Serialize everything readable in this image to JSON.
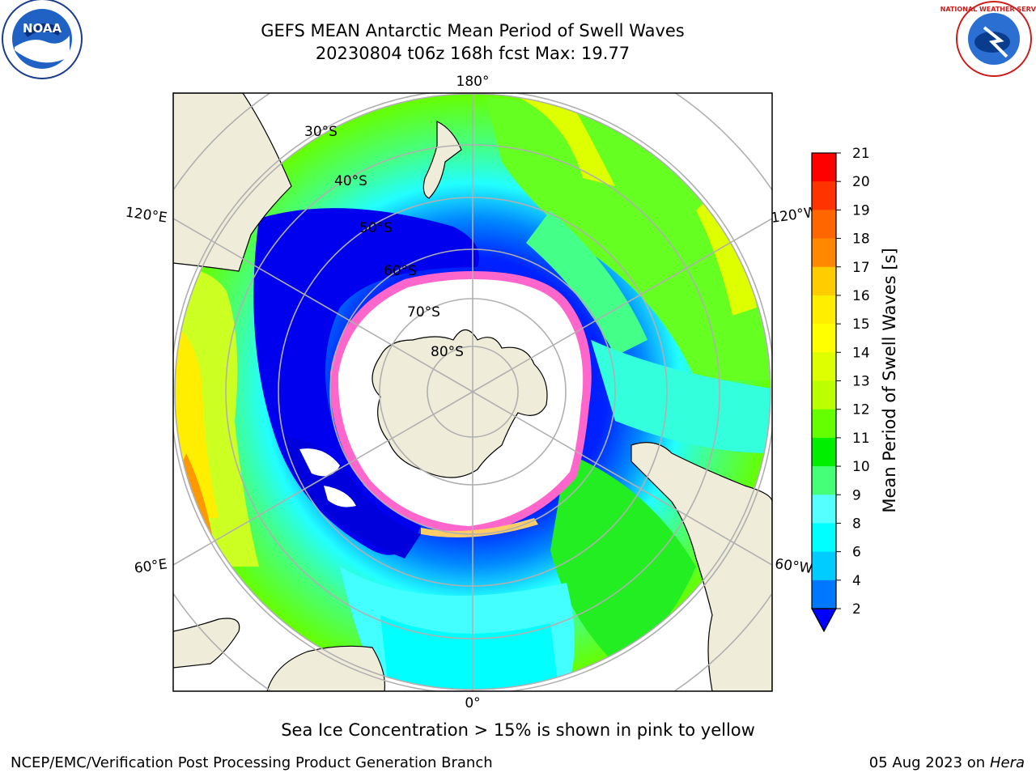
{
  "title": {
    "line1": "GEFS MEAN Antarctic Mean Period of Swell Waves",
    "line2": "20230804 t06z 168h fcst   Max: 19.77"
  },
  "caption": "Sea Ice Concentration > 15% is shown in pink to yellow",
  "footer": {
    "left": "NCEP/EMC/Verification Post Processing Product Generation Branch",
    "date": "05 Aug 2023 on",
    "machine": "Hera"
  },
  "logos": {
    "noara_icon": "noaa-logo",
    "noaa_text": "NOAA",
    "nws_icon": "nws-logo",
    "nws_text": "NATIONAL WEATHER SERVICE"
  },
  "map": {
    "projection": "south-polar-stereographic",
    "longitude_labels": {
      "top": "180°",
      "bottom": "0°",
      "upper_left": "120°E",
      "upper_right": "120°W",
      "lower_left": "60°E",
      "lower_right": "60°W"
    },
    "latitude_labels": [
      "30°S",
      "40°S",
      "50°S",
      "60°S",
      "70°S",
      "80°S"
    ],
    "colors": {
      "land": "#efedd9",
      "ice": "#ffffff",
      "ice_edge": "#ff66cc",
      "grid": "#b0b0b0"
    }
  },
  "colorbar": {
    "label": "Mean Period of Swell Waves [s]",
    "ticks": [
      "21",
      "20",
      "19",
      "18",
      "17",
      "16",
      "15",
      "14",
      "13",
      "12",
      "11",
      "10",
      "9",
      "8",
      "6",
      "4",
      "2"
    ],
    "colors": [
      "#ff0000",
      "#ff3300",
      "#ff6600",
      "#ff8800",
      "#ffaa00",
      "#ffcc00",
      "#ffee00",
      "#ffff00",
      "#ddff00",
      "#bbff00",
      "#66ff00",
      "#00ee00",
      "#44ff77",
      "#99ffdd",
      "#55ffff",
      "#00ffff",
      "#00ccff",
      "#0077ff"
    ],
    "extend_color": "#0000ff"
  }
}
